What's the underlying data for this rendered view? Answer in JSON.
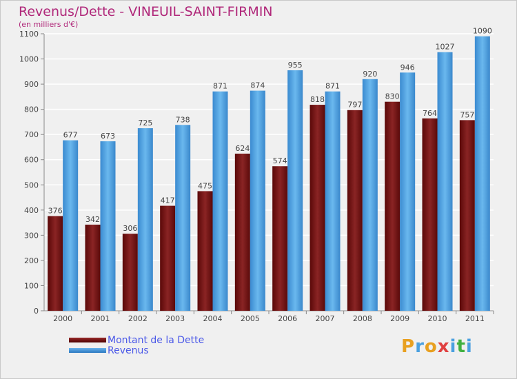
{
  "header": {
    "title": "Revenus/Dette - VINEUIL-SAINT-FIRMIN",
    "subtitle": "(en milliers d'€)"
  },
  "legend": {
    "items": [
      {
        "label": "Montant de la Dette",
        "color": "#7a1414"
      },
      {
        "label": "Revenus",
        "color": "#4ea0e0"
      }
    ]
  },
  "logo": {
    "text": "Proxiti",
    "letters": [
      "P",
      "r",
      "o",
      "x",
      "i",
      "t",
      "i"
    ],
    "colors": [
      "#e8a020",
      "#4aa0e0",
      "#e8a020",
      "#e04040",
      "#4aa0e0",
      "#40b040",
      "#4aa0e0"
    ]
  },
  "chart_data": {
    "type": "bar",
    "categories": [
      "2000",
      "2001",
      "2002",
      "2003",
      "2004",
      "2005",
      "2006",
      "2007",
      "2008",
      "2009",
      "2010",
      "2011"
    ],
    "series": [
      {
        "name": "Montant de la Dette",
        "color": "#7a1414",
        "values": [
          376,
          342,
          306,
          417,
          475,
          624,
          574,
          818,
          797,
          830,
          764,
          757
        ]
      },
      {
        "name": "Revenus",
        "color": "#4ea0e0",
        "values": [
          677,
          673,
          725,
          738,
          871,
          874,
          955,
          871,
          920,
          946,
          1027,
          1090
        ]
      }
    ],
    "ylim": [
      0,
      1100
    ],
    "yticks": [
      0,
      100,
      200,
      300,
      400,
      500,
      600,
      700,
      800,
      900,
      1000,
      1100
    ],
    "grid": true,
    "legend_position": "bottom-left"
  }
}
